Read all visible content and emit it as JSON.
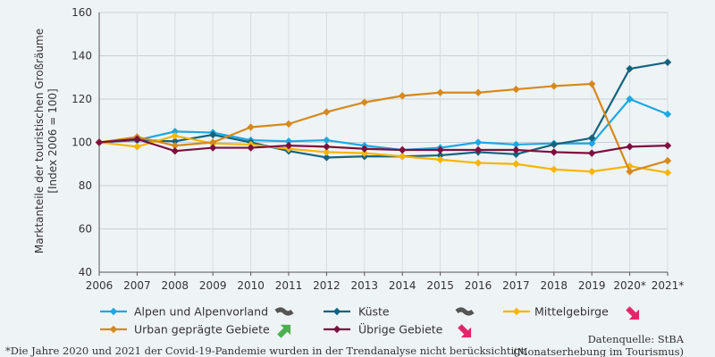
{
  "chart_data": {
    "type": "line",
    "categories": [
      "2006",
      "2007",
      "2008",
      "2009",
      "2010",
      "2011",
      "2012",
      "2013",
      "2014",
      "2015",
      "2016",
      "2017",
      "2018",
      "2019",
      "2020*",
      "2021*"
    ],
    "ylabel_line1": "Marktanteile der touristischen Großräume",
    "ylabel_line2": "[Index 2006 = 100]",
    "ylim": [
      40,
      160
    ],
    "yticks": [
      40,
      60,
      80,
      100,
      120,
      140,
      160
    ],
    "grid": true,
    "series": [
      {
        "name": "Alpen und Alpenvorland",
        "color": "#1ea7e1",
        "trend": "flat",
        "values": [
          100,
          101,
          105,
          104.5,
          101,
          100.5,
          101,
          98.5,
          96.5,
          97.5,
          100,
          99,
          99.5,
          99.5,
          120,
          113
        ]
      },
      {
        "name": "Küste",
        "color": "#14637e",
        "trend": "flat",
        "values": [
          100,
          101,
          100.5,
          103.5,
          100,
          96,
          93,
          93.5,
          93.5,
          94,
          95.5,
          94.5,
          99,
          102,
          134,
          137
        ]
      },
      {
        "name": "Mittelgebirge",
        "color": "#f7b500",
        "trend": "down",
        "values": [
          100,
          98,
          103,
          99.5,
          99,
          97,
          95.5,
          95,
          93.5,
          92,
          90.5,
          90,
          87.5,
          86.5,
          89,
          86
        ]
      },
      {
        "name": "Urban geprägte Gebiete",
        "color": "#d6891c",
        "trend": "up",
        "values": [
          100,
          102.5,
          98.5,
          100,
          107,
          108.5,
          114,
          118.5,
          121.5,
          123,
          123,
          124.5,
          126,
          127,
          86.5,
          91.5
        ]
      },
      {
        "name": "Übrige Gebiete",
        "color": "#7d0f3e",
        "trend": "down",
        "values": [
          100,
          101.5,
          96,
          97.5,
          97.5,
          98.5,
          98,
          97,
          96.5,
          96.5,
          96.5,
          96.5,
          95.5,
          95,
          98,
          98.5
        ]
      }
    ],
    "trend_colors": {
      "flat": "#555555",
      "down": "#e0266b",
      "up": "#4caf50"
    }
  },
  "footnote": "*Die Jahre 2020 und 2021 der Covid-19-Pandemie wurden in der Trendanalyse nicht berücksichtigt.",
  "source_line1": "Datenquelle: StBA",
  "source_line2": "(Monatserhebung im Tourismus)"
}
